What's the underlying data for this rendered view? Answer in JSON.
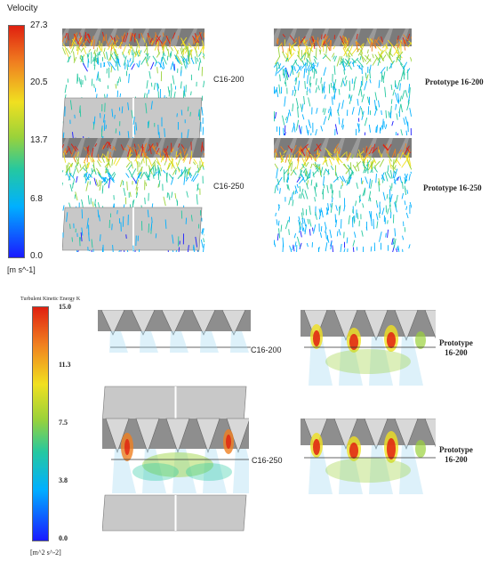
{
  "velocity_legend": {
    "title": "Velocity",
    "ticks": [
      "27.3",
      "20.5",
      "13.7",
      "6.8",
      "0.0"
    ],
    "unit": "[m s^-1]"
  },
  "tke_legend": {
    "title": "Turbulent Kinetic Energy K",
    "ticks": [
      "15.0",
      "11.3",
      "7.5",
      "3.8",
      "0.0"
    ],
    "unit": "[m^2 s^-2]"
  },
  "panels": {
    "top_c16_200": "C16-200",
    "top_c16_250": "C16-250",
    "top_proto_200": "Prototype 16-200",
    "top_proto_250": "Prototype 16-250",
    "bottom_c16_200": "C16-200",
    "bottom_c16_250": "C16-250",
    "bottom_proto_a_line1": "Prototype",
    "bottom_proto_a_line2": "16-200",
    "bottom_proto_b_line1": "Prototype",
    "bottom_proto_b_line2": "16-200"
  },
  "colors": {
    "scale": [
      "#1a1aff",
      "#00b0ff",
      "#25c8a0",
      "#9ad23a",
      "#f0e020",
      "#f08020",
      "#e02010"
    ],
    "housing": "#c8c8c8",
    "blade": "#6e6e6e"
  }
}
